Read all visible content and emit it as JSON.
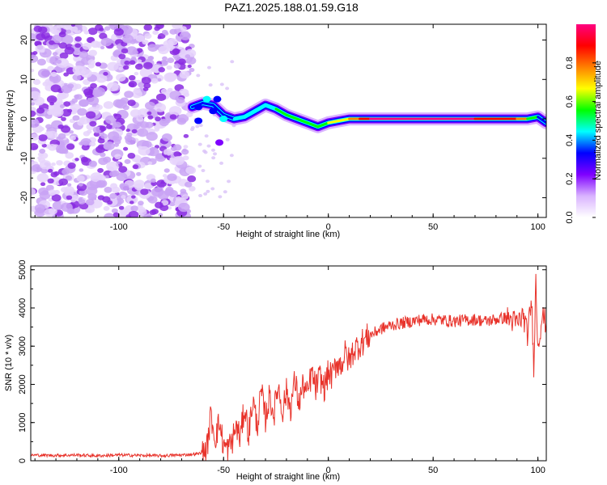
{
  "title": "PAZ1.2025.188.01.59.G18",
  "colors": {
    "snr_line": "#e8332b",
    "background": "#ffffff",
    "axis": "#000000"
  },
  "chart_data": [
    {
      "type": "heatmap",
      "title": "PAZ1.2025.188.01.59.G18",
      "xlabel": "Height of straight line (km)",
      "ylabel": "Frequency (Hz)",
      "xlim": [
        -142,
        104
      ],
      "ylim": [
        -25,
        24
      ],
      "x_ticks": [
        -100,
        -50,
        0,
        50,
        100
      ],
      "x_tick_labels": [
        "-100",
        "-50",
        "0",
        "50",
        "100"
      ],
      "y_ticks": [
        -20,
        -10,
        0,
        10,
        20
      ],
      "y_tick_labels": [
        "-20",
        "-10",
        "0",
        "10",
        "20"
      ],
      "colorbar": {
        "label": "Normalized spectral amplitude",
        "range": [
          0,
          1
        ],
        "ticks": [
          0.0,
          0.2,
          0.4,
          0.6,
          0.8
        ],
        "tick_labels": [
          "0.0",
          "0.2",
          "0.4",
          "0.6",
          "0.8"
        ],
        "colormap": [
          "#ffffff",
          "#d9b3ff",
          "#7f00ff",
          "#0000ff",
          "#00ffff",
          "#00ff00",
          "#ffff00",
          "#ff8000",
          "#ff0000",
          "#ff0080"
        ]
      },
      "noise_region": {
        "x_range": [
          -142,
          -65
        ],
        "freq_range": [
          -25,
          24
        ],
        "amplitude_range": [
          0.0,
          0.15
        ]
      },
      "ridge": [
        {
          "x": -65,
          "f": 3,
          "a": 0.3
        },
        {
          "x": -60,
          "f": 4,
          "a": 0.28
        },
        {
          "x": -55,
          "f": 3.5,
          "a": 0.3
        },
        {
          "x": -50,
          "f": 1,
          "a": 0.35
        },
        {
          "x": -45,
          "f": 0,
          "a": 0.4
        },
        {
          "x": -40,
          "f": 0.5,
          "a": 0.38
        },
        {
          "x": -35,
          "f": 2,
          "a": 0.4
        },
        {
          "x": -30,
          "f": 3.5,
          "a": 0.45
        },
        {
          "x": -25,
          "f": 2.5,
          "a": 0.5
        },
        {
          "x": -20,
          "f": 1,
          "a": 0.5
        },
        {
          "x": -15,
          "f": 0,
          "a": 0.55
        },
        {
          "x": -10,
          "f": -1,
          "a": 0.55
        },
        {
          "x": -5,
          "f": -2,
          "a": 0.6
        },
        {
          "x": 0,
          "f": -1,
          "a": 0.6
        },
        {
          "x": 5,
          "f": -0.5,
          "a": 0.65
        },
        {
          "x": 10,
          "f": 0,
          "a": 0.7
        },
        {
          "x": 15,
          "f": 0,
          "a": 0.85
        },
        {
          "x": 20,
          "f": 0,
          "a": 0.95
        },
        {
          "x": 30,
          "f": 0,
          "a": 0.95
        },
        {
          "x": 40,
          "f": 0,
          "a": 0.95
        },
        {
          "x": 50,
          "f": 0,
          "a": 0.95
        },
        {
          "x": 60,
          "f": 0,
          "a": 0.95
        },
        {
          "x": 70,
          "f": 0,
          "a": 0.95
        },
        {
          "x": 80,
          "f": 0,
          "a": 0.92
        },
        {
          "x": 90,
          "f": 0,
          "a": 0.85
        },
        {
          "x": 95,
          "f": 0,
          "a": 0.6
        },
        {
          "x": 100,
          "f": 0.5,
          "a": 0.4
        },
        {
          "x": 104,
          "f": -1,
          "a": 0.3
        }
      ]
    },
    {
      "type": "line",
      "xlabel": "Height of straight line (km)",
      "ylabel": "SNR (10 * v/v)",
      "xlim": [
        -142,
        104
      ],
      "ylim": [
        0,
        5100
      ],
      "x_ticks": [
        -100,
        -50,
        0,
        50,
        100
      ],
      "x_tick_labels": [
        "-100",
        "-50",
        "0",
        "50",
        "100"
      ],
      "y_ticks": [
        0,
        1000,
        2000,
        3000,
        4000,
        5000
      ],
      "y_tick_labels": [
        "0",
        "1000",
        "2000",
        "3000",
        "4000",
        "5000"
      ],
      "series": [
        {
          "x": [
            -142,
            -130,
            -120,
            -110,
            -100,
            -90,
            -80,
            -70,
            -62,
            -58,
            -56,
            -54,
            -52,
            -50,
            -48,
            -46,
            -44,
            -42,
            -40,
            -38,
            -36,
            -34,
            -32,
            -30,
            -28,
            -26,
            -24,
            -22,
            -20,
            -18,
            -16,
            -14,
            -12,
            -10,
            -8,
            -6,
            -4,
            -2,
            0,
            2,
            4,
            6,
            8,
            10,
            12,
            14,
            16,
            18,
            20,
            22,
            25,
            30,
            35,
            40,
            45,
            50,
            55,
            60,
            65,
            70,
            75,
            80,
            85,
            90,
            93,
            95,
            97,
            98,
            99,
            100,
            102,
            104
          ],
          "y": [
            150,
            140,
            150,
            130,
            150,
            140,
            130,
            150,
            180,
            300,
            1200,
            600,
            1000,
            400,
            300,
            500,
            900,
            600,
            1400,
            700,
            1600,
            900,
            1800,
            1100,
            1700,
            1200,
            2000,
            1300,
            1800,
            1400,
            2100,
            1500,
            2000,
            1700,
            2300,
            1900,
            2200,
            1900,
            2300,
            2200,
            2600,
            2500,
            2800,
            2600,
            2900,
            3000,
            3100,
            3200,
            3300,
            3350,
            3450,
            3550,
            3600,
            3650,
            3700,
            3700,
            3680,
            3650,
            3680,
            3700,
            3650,
            3700,
            3750,
            3600,
            3800,
            3300,
            4200,
            2500,
            4700,
            3000,
            3800,
            3600
          ]
        }
      ]
    }
  ]
}
